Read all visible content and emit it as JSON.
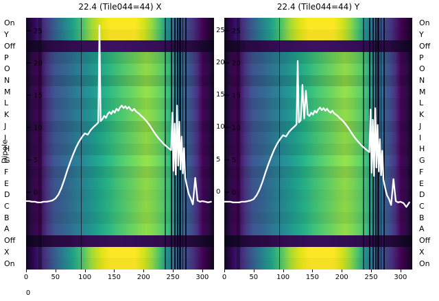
{
  "misc": {
    "bottom_left_tick": "0"
  },
  "chart_data": {
    "type": "heatmap",
    "description": "Two spectrogram-style amplitude-vs-channel heatmaps per dipole with white bandpass line overlay",
    "ylabel": "Dipole",
    "line_color": "#ffffff",
    "rows": [
      {
        "label": "On",
        "type": "bright"
      },
      {
        "label": "Y",
        "type": "bright"
      },
      {
        "label": "Off",
        "type": "dark"
      },
      {
        "label": "P",
        "type": "main"
      },
      {
        "label": "O",
        "type": "main"
      },
      {
        "label": "N",
        "type": "main"
      },
      {
        "label": "M",
        "type": "main"
      },
      {
        "label": "L",
        "type": "main"
      },
      {
        "label": "K",
        "type": "main"
      },
      {
        "label": "J",
        "type": "main"
      },
      {
        "label": "I",
        "type": "main"
      },
      {
        "label": "H",
        "type": "main"
      },
      {
        "label": "G",
        "type": "main"
      },
      {
        "label": "F",
        "type": "main"
      },
      {
        "label": "E",
        "type": "main"
      },
      {
        "label": "D",
        "type": "main"
      },
      {
        "label": "C",
        "type": "main"
      },
      {
        "label": "B",
        "type": "main"
      },
      {
        "label": "A",
        "type": "main"
      },
      {
        "label": "Off",
        "type": "dark"
      },
      {
        "label": "X",
        "type": "bright"
      },
      {
        "label": "On",
        "type": "bright"
      }
    ],
    "axes": {
      "xlim": [
        0,
        320
      ],
      "xticks": [
        0,
        50,
        100,
        150,
        200,
        250,
        300
      ],
      "ylim": [
        -12,
        27
      ],
      "yticks": [
        0,
        5,
        10,
        15,
        20,
        25
      ]
    },
    "palettes": {
      "main": [
        [
          0,
          "#10071f"
        ],
        [
          3,
          "#2a0c44"
        ],
        [
          7,
          "#440154"
        ],
        [
          11,
          "#46327e"
        ],
        [
          15,
          "#3b528b"
        ],
        [
          20,
          "#33608d"
        ],
        [
          26,
          "#2b748e"
        ],
        [
          32,
          "#23888e"
        ],
        [
          38,
          "#1e9c89"
        ],
        [
          44,
          "#2ab07f"
        ],
        [
          50,
          "#46c06f"
        ],
        [
          55,
          "#5ec962"
        ],
        [
          60,
          "#78d152"
        ],
        [
          64,
          "#8ed645"
        ],
        [
          68,
          "#7ad151"
        ],
        [
          72,
          "#5ec962"
        ],
        [
          76,
          "#35b779"
        ],
        [
          80,
          "#26828e"
        ],
        [
          84,
          "#31688e"
        ],
        [
          88,
          "#3e4c8a"
        ],
        [
          91,
          "#46327e"
        ],
        [
          94,
          "#440154"
        ],
        [
          97,
          "#2a0c44"
        ],
        [
          100,
          "#10071f"
        ]
      ],
      "bright": [
        [
          0,
          "#10071f"
        ],
        [
          5,
          "#360961"
        ],
        [
          10,
          "#46327e"
        ],
        [
          15,
          "#365c8d"
        ],
        [
          20,
          "#277f8e"
        ],
        [
          25,
          "#1fa188"
        ],
        [
          30,
          "#4ac16d"
        ],
        [
          35,
          "#a0da39"
        ],
        [
          40,
          "#dfe318"
        ],
        [
          45,
          "#fde725"
        ],
        [
          58,
          "#fde725"
        ],
        [
          63,
          "#d2e21b"
        ],
        [
          67,
          "#95d840"
        ],
        [
          71,
          "#4ac16d"
        ],
        [
          75,
          "#21918c"
        ],
        [
          79,
          "#2c728e"
        ],
        [
          84,
          "#3b528b"
        ],
        [
          89,
          "#46327e"
        ],
        [
          94,
          "#440154"
        ],
        [
          100,
          "#10071f"
        ]
      ],
      "dark": [
        [
          0,
          "#0b0519"
        ],
        [
          12,
          "#26093e"
        ],
        [
          30,
          "#330d52"
        ],
        [
          50,
          "#3a105e"
        ],
        [
          70,
          "#330d52"
        ],
        [
          88,
          "#26093e"
        ],
        [
          100,
          "#0b0519"
        ]
      ]
    },
    "flags": [
      {
        "x": 21,
        "w": 6,
        "o": 0.4
      },
      {
        "x": 93,
        "w": 2,
        "o": 0.7
      },
      {
        "x": 236,
        "w": 2,
        "o": 0.6
      },
      {
        "x": 247,
        "w": 2,
        "o": 0.85
      },
      {
        "x": 252,
        "w": 3,
        "o": 0.85
      },
      {
        "x": 257,
        "w": 2,
        "o": 0.85
      },
      {
        "x": 261,
        "w": 3,
        "o": 0.85
      },
      {
        "x": 266,
        "w": 2,
        "o": 0.85
      },
      {
        "x": 271,
        "w": 2,
        "o": 0.85
      }
    ],
    "panels": [
      {
        "title": "22.4 (Tile044=44) X",
        "right_tick_labels": true,
        "line": {
          "x": [
            0,
            5,
            10,
            15,
            20,
            25,
            30,
            35,
            40,
            45,
            50,
            55,
            60,
            65,
            70,
            75,
            80,
            85,
            90,
            95,
            100,
            105,
            110,
            115,
            120,
            123,
            125,
            127,
            130,
            133,
            136,
            139,
            142,
            145,
            148,
            151,
            154,
            157,
            160,
            163,
            166,
            169,
            172,
            175,
            178,
            181,
            184,
            187,
            190,
            193,
            196,
            200,
            205,
            210,
            215,
            220,
            225,
            230,
            235,
            240,
            244,
            247,
            249,
            251,
            253,
            255,
            257,
            259,
            261,
            263,
            265,
            267,
            269,
            271,
            274,
            277,
            280,
            284,
            288,
            292,
            296,
            300,
            305,
            310,
            315
          ],
          "y": [
            -1.4,
            -1.4,
            -1.5,
            -1.5,
            -1.6,
            -1.6,
            -1.5,
            -1.5,
            -1.4,
            -1.3,
            -1.0,
            -0.4,
            0.6,
            1.9,
            3.3,
            4.6,
            5.8,
            6.9,
            7.8,
            8.5,
            9.1,
            8.9,
            9.6,
            10.1,
            10.5,
            10.8,
            25.8,
            11.0,
            11.3,
            11.8,
            11.5,
            12.1,
            12.4,
            12.1,
            12.6,
            12.3,
            12.9,
            12.6,
            13.1,
            13.4,
            13.0,
            13.3,
            12.9,
            13.2,
            12.8,
            12.6,
            12.9,
            12.5,
            12.3,
            12.1,
            11.8,
            11.5,
            11.0,
            10.4,
            9.7,
            9.0,
            8.4,
            7.9,
            7.4,
            7.0,
            6.7,
            6.5,
            12.3,
            3.3,
            10.6,
            2.7,
            13.4,
            4.1,
            10.9,
            3.5,
            8.6,
            2.9,
            6.8,
            2.2,
            0.9,
            -0.3,
            -0.9,
            -1.9,
            2.2,
            -1.3,
            -1.5,
            -1.4,
            -1.5,
            -1.6,
            -1.5
          ]
        }
      },
      {
        "title": "22.4 (Tile044=44) Y",
        "right_tick_labels": false,
        "line": {
          "x": [
            0,
            5,
            10,
            15,
            20,
            25,
            30,
            35,
            40,
            45,
            50,
            55,
            60,
            65,
            70,
            75,
            80,
            85,
            90,
            95,
            100,
            105,
            110,
            115,
            120,
            123,
            125,
            127,
            130,
            133,
            136,
            139,
            142,
            145,
            148,
            151,
            154,
            157,
            160,
            163,
            166,
            169,
            172,
            175,
            178,
            181,
            184,
            187,
            190,
            193,
            196,
            200,
            205,
            210,
            215,
            220,
            225,
            230,
            235,
            240,
            244,
            247,
            249,
            251,
            253,
            255,
            257,
            259,
            261,
            263,
            265,
            267,
            269,
            271,
            274,
            277,
            280,
            284,
            288,
            292,
            296,
            300,
            305,
            310,
            315
          ],
          "y": [
            -1.5,
            -1.5,
            -1.5,
            -1.6,
            -1.6,
            -1.6,
            -1.5,
            -1.5,
            -1.4,
            -1.3,
            -1.1,
            -0.5,
            0.4,
            1.6,
            3.0,
            4.3,
            5.5,
            6.6,
            7.5,
            8.2,
            8.8,
            8.6,
            9.3,
            9.8,
            10.2,
            10.5,
            20.3,
            10.8,
            11.1,
            16.6,
            11.4,
            15.7,
            12.0,
            11.8,
            12.3,
            12.0,
            12.6,
            12.3,
            12.8,
            13.1,
            12.7,
            13.0,
            12.6,
            12.9,
            12.5,
            12.3,
            12.6,
            12.2,
            12.0,
            11.8,
            11.5,
            11.2,
            10.7,
            10.1,
            9.4,
            8.7,
            8.1,
            7.6,
            7.1,
            6.7,
            6.4,
            6.2,
            12.8,
            3.0,
            11.2,
            2.5,
            13.0,
            3.8,
            10.4,
            3.2,
            8.2,
            2.6,
            6.4,
            1.9,
            0.6,
            -0.5,
            -1.0,
            -2.0,
            2.0,
            -1.4,
            -1.6,
            -1.5,
            -1.7,
            -2.3,
            -1.6
          ]
        }
      }
    ]
  }
}
